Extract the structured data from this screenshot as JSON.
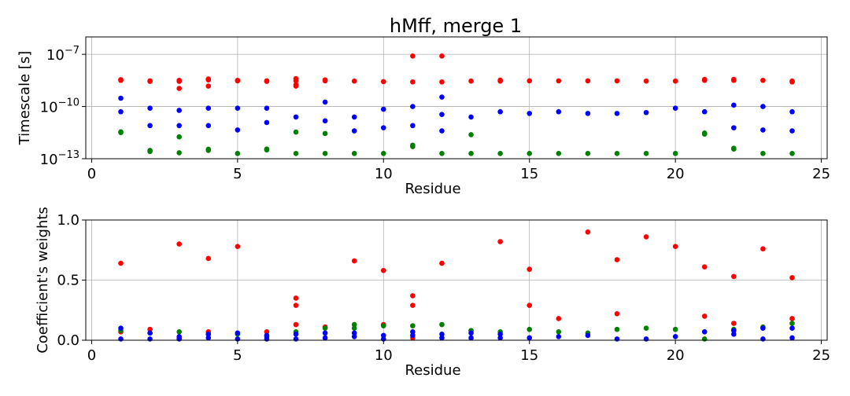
{
  "title": "hMff, merge 1",
  "colors": {
    "tau1": "#0000ff",
    "tau2": "#ff0000",
    "tau3": "#008000"
  },
  "chart_data": [
    {
      "type": "scatter",
      "title": "hMff, merge 1",
      "xlabel": "Residue",
      "ylabel": "Timescale [s]",
      "yscale": "log",
      "xlim": [
        -0.2,
        25.2
      ],
      "ylim": [
        1e-13,
        1e-06
      ],
      "xticks": [
        0,
        5,
        10,
        15,
        20,
        25
      ],
      "xtick_labels": [
        "0",
        "5",
        "10",
        "15",
        "20",
        "25"
      ],
      "yticks": [
        1e-13,
        1e-10,
        1e-07
      ],
      "ytick_base": "10",
      "ytick_exponents": [
        "−13",
        "−10",
        "−7"
      ],
      "grid": true,
      "series": [
        {
          "color": "#ff0000",
          "x": [
            1,
            1,
            2,
            2,
            3,
            3,
            3,
            4,
            4,
            4,
            5,
            5,
            6,
            6,
            7,
            7,
            7,
            7,
            8,
            8,
            9,
            10,
            11,
            11,
            12,
            12,
            13,
            14,
            14,
            15,
            16,
            17,
            18,
            19,
            20,
            21,
            21,
            22,
            22,
            23,
            24,
            24
          ],
          "y": [
            3.5e-09,
            3.2e-09,
            3e-09,
            2.8e-09,
            3.2e-09,
            2.8e-09,
            1.1e-09,
            3.8e-09,
            3.4e-09,
            1.5e-09,
            3.2e-09,
            3e-09,
            3e-09,
            2.8e-09,
            4e-09,
            3e-09,
            1.8e-09,
            1.5e-09,
            3.4e-09,
            3e-09,
            2.9e-09,
            2.7e-09,
            8e-08,
            2.6e-09,
            8e-08,
            2.6e-09,
            2.9e-09,
            3.3e-09,
            2.9e-09,
            3e-09,
            3e-09,
            3e-09,
            3e-09,
            2.9e-09,
            2.9e-09,
            3.6e-09,
            3.2e-09,
            3.6e-09,
            3.2e-09,
            3.2e-09,
            2.9e-09,
            2.6e-09
          ]
        },
        {
          "color": "#0000ff",
          "x": [
            1,
            1,
            2,
            2,
            3,
            3,
            4,
            4,
            5,
            5,
            6,
            6,
            7,
            8,
            8,
            9,
            9,
            10,
            10,
            11,
            11,
            12,
            12,
            12,
            13,
            14,
            15,
            16,
            17,
            18,
            19,
            20,
            21,
            22,
            22,
            23,
            23,
            24,
            24
          ],
          "y": [
            3e-10,
            5e-11,
            8e-11,
            8e-12,
            6e-11,
            8e-12,
            8e-11,
            8e-12,
            8e-11,
            4.5e-12,
            8e-11,
            1.2e-11,
            2.5e-11,
            1.8e-10,
            1.5e-11,
            2.5e-11,
            4e-12,
            7e-11,
            6e-12,
            1e-10,
            8e-12,
            3.5e-10,
            3.5e-11,
            4e-12,
            2.5e-11,
            5e-11,
            4e-11,
            5e-11,
            4e-11,
            4e-11,
            4.5e-11,
            8e-11,
            5e-11,
            1.2e-10,
            6e-12,
            1e-10,
            4.5e-12,
            5e-11,
            4e-12
          ]
        },
        {
          "color": "#008000",
          "x": [
            1,
            1,
            2,
            2,
            3,
            3,
            4,
            4,
            5,
            6,
            6,
            7,
            7,
            8,
            8,
            9,
            10,
            11,
            11,
            12,
            13,
            13,
            14,
            15,
            16,
            17,
            18,
            19,
            20,
            21,
            21,
            22,
            22,
            23,
            24
          ],
          "y": [
            3.5e-12,
            3.2e-12,
            3e-13,
            2.6e-13,
            1.8e-12,
            2.2e-13,
            3.5e-13,
            3e-13,
            2e-13,
            3.6e-13,
            3.2e-13,
            3.4e-12,
            2e-13,
            2.8e-12,
            2e-13,
            2e-13,
            2e-13,
            6e-13,
            5e-13,
            2e-13,
            2.4e-12,
            2e-13,
            2e-13,
            2e-13,
            2e-13,
            2e-13,
            2e-13,
            2e-13,
            2e-13,
            3e-12,
            2.6e-12,
            4e-13,
            3.6e-13,
            2e-13,
            2e-13
          ]
        }
      ]
    },
    {
      "type": "scatter",
      "xlabel": "Residue",
      "ylabel": "Coefficient's weights",
      "xlim": [
        -0.2,
        25.2
      ],
      "ylim": [
        0,
        1
      ],
      "xticks": [
        0,
        5,
        10,
        15,
        20,
        25
      ],
      "xtick_labels": [
        "0",
        "5",
        "10",
        "15",
        "20",
        "25"
      ],
      "yticks": [
        0,
        0.5,
        1
      ],
      "ytick_labels": [
        "0.0",
        "0.5",
        "1.0"
      ],
      "grid": true,
      "series": [
        {
          "color": "#ff0000",
          "x": [
            1,
            1,
            2,
            3,
            3,
            4,
            4,
            5,
            6,
            7,
            7,
            7,
            8,
            9,
            10,
            10,
            11,
            11,
            11,
            12,
            13,
            14,
            15,
            15,
            16,
            17,
            18,
            18,
            19,
            20,
            21,
            21,
            22,
            22,
            23,
            24,
            24
          ],
          "y": [
            0.64,
            0.07,
            0.09,
            0.8,
            0.02,
            0.68,
            0.07,
            0.78,
            0.07,
            0.35,
            0.29,
            0.13,
            0.11,
            0.66,
            0.58,
            0.13,
            0.37,
            0.29,
            0.02,
            0.64,
            0.08,
            0.82,
            0.59,
            0.29,
            0.18,
            0.9,
            0.67,
            0.22,
            0.86,
            0.78,
            0.61,
            0.2,
            0.53,
            0.14,
            0.76,
            0.52,
            0.18
          ]
        },
        {
          "color": "#008000",
          "x": [
            1,
            2,
            3,
            4,
            5,
            6,
            7,
            8,
            9,
            9,
            10,
            11,
            12,
            13,
            14,
            15,
            16,
            17,
            18,
            19,
            20,
            21,
            22,
            23,
            24
          ],
          "y": [
            0.08,
            0.06,
            0.07,
            0.05,
            0.05,
            0.03,
            0.07,
            0.1,
            0.13,
            0.1,
            0.12,
            0.12,
            0.13,
            0.08,
            0.07,
            0.09,
            0.07,
            0.06,
            0.09,
            0.1,
            0.09,
            0.01,
            0.09,
            0.11,
            0.14
          ]
        },
        {
          "color": "#0000ff",
          "x": [
            1,
            1,
            2,
            2,
            3,
            3,
            4,
            4,
            5,
            5,
            6,
            6,
            7,
            7,
            8,
            8,
            9,
            9,
            10,
            10,
            11,
            11,
            12,
            12,
            13,
            13,
            14,
            14,
            15,
            16,
            17,
            18,
            19,
            20,
            21,
            22,
            22,
            23,
            23,
            24,
            24
          ],
          "y": [
            0.1,
            0.01,
            0.06,
            0.01,
            0.03,
            0.01,
            0.05,
            0.02,
            0.06,
            0.01,
            0.04,
            0.01,
            0.05,
            0.01,
            0.06,
            0.02,
            0.06,
            0.03,
            0.04,
            0.01,
            0.07,
            0.04,
            0.05,
            0.02,
            0.06,
            0.02,
            0.05,
            0.02,
            0.02,
            0.03,
            0.04,
            0.01,
            0.01,
            0.03,
            0.07,
            0.08,
            0.05,
            0.1,
            0.01,
            0.1,
            0.02
          ]
        }
      ]
    }
  ]
}
